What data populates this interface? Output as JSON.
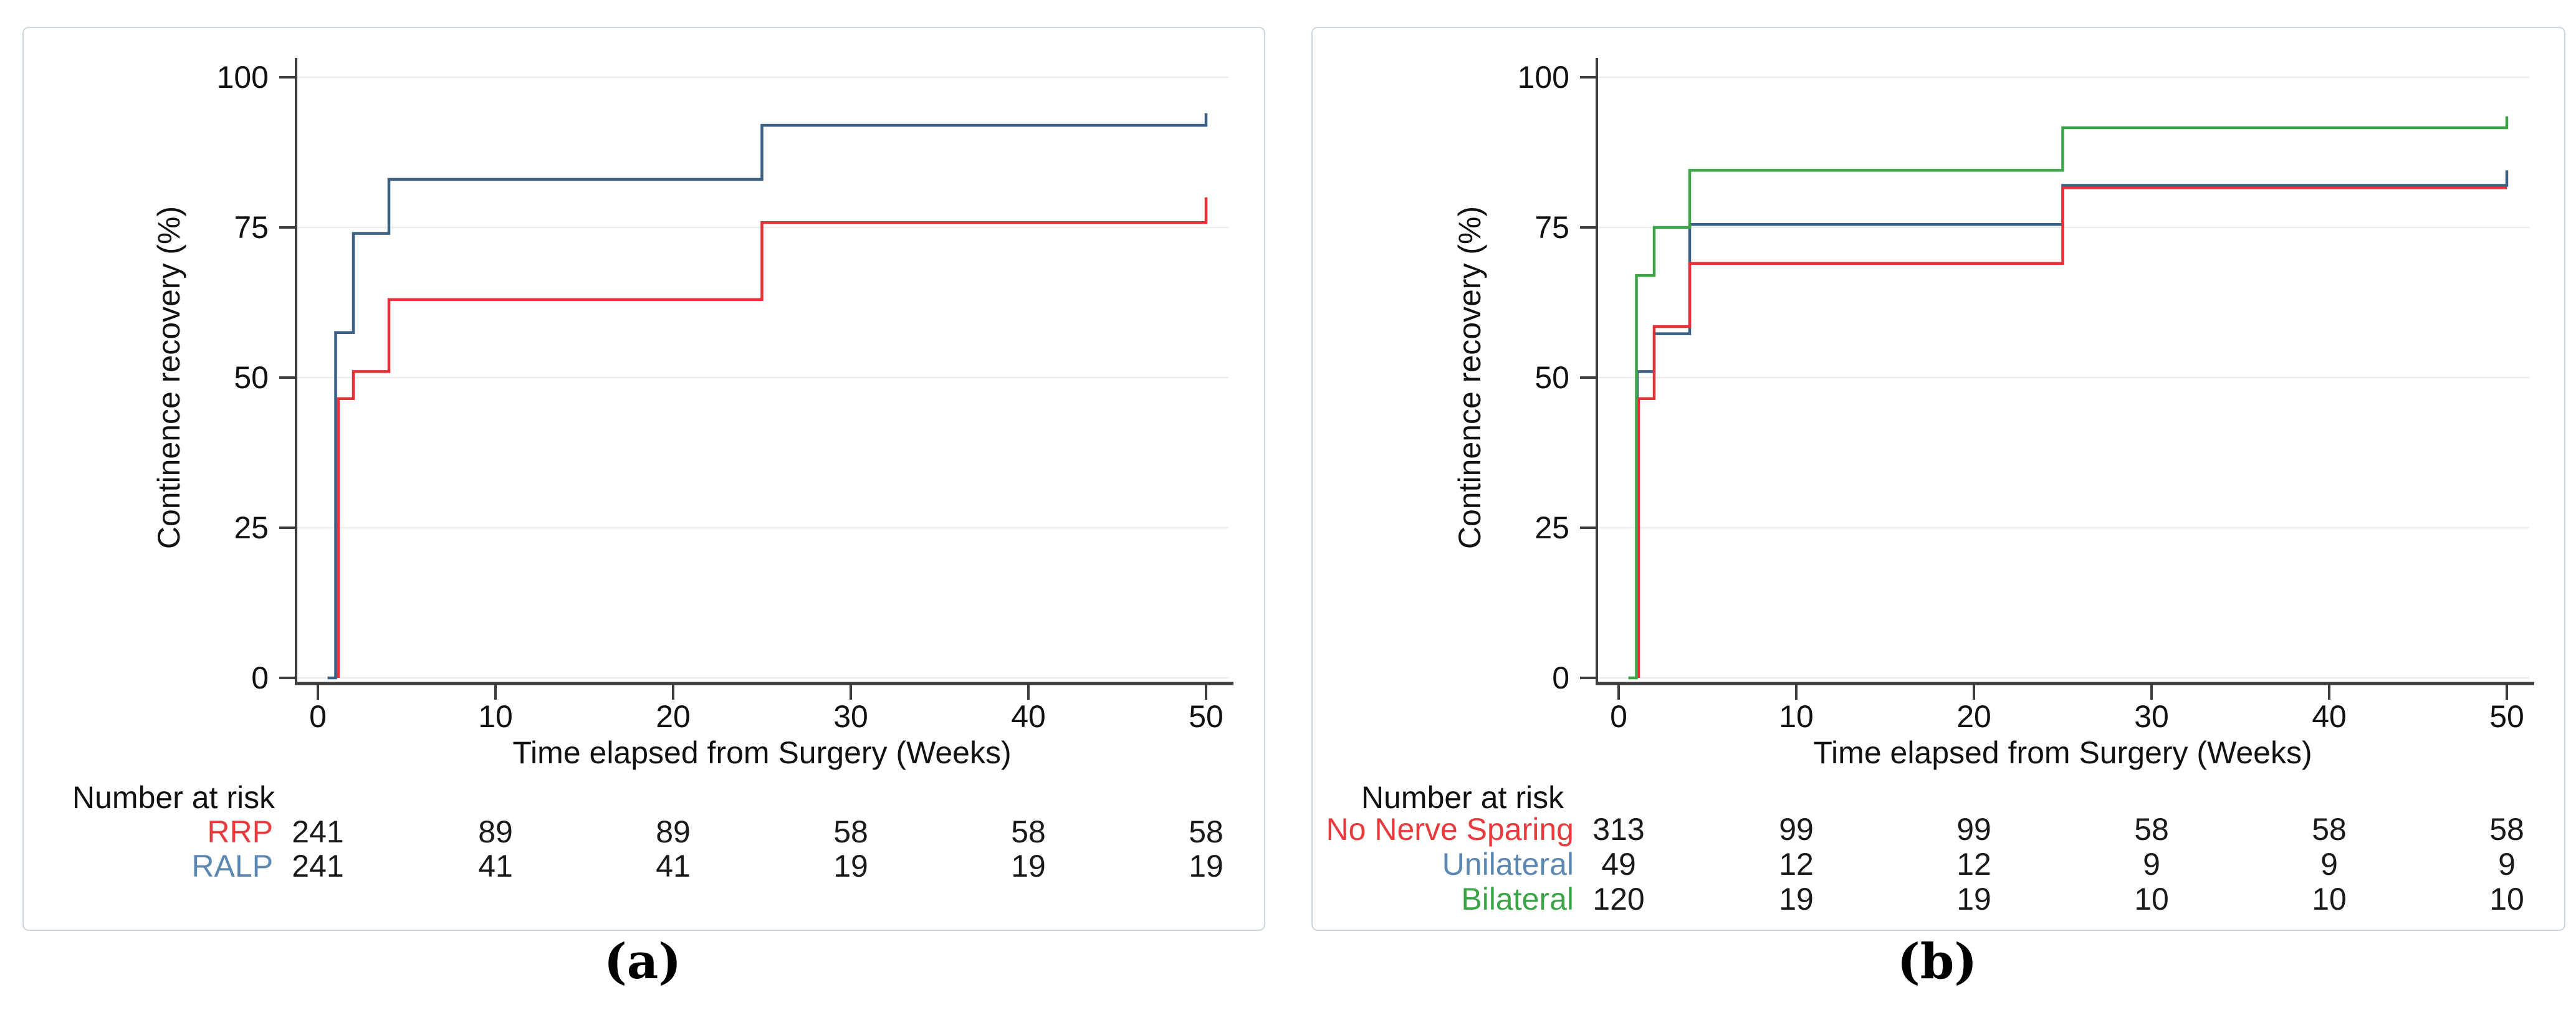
{
  "figure": {
    "background": "#ffffff",
    "frame_color": "#cdd8dd",
    "grid_color": "#e9eded",
    "axis_color": "#3d3d3d",
    "text_color": "#111111"
  },
  "chart_data": [
    {
      "type": "line",
      "subtype": "kaplan-meier-step",
      "panel": "a",
      "caption": "(a)",
      "title": "",
      "xlabel": "Time elapsed from Surgery (Weeks)",
      "ylabel": "Continence recovery (%)",
      "x_ticks": [
        0,
        10,
        20,
        30,
        40,
        50
      ],
      "y_ticks": [
        0,
        25,
        50,
        75,
        100
      ],
      "xlim": [
        0,
        50
      ],
      "ylim": [
        0,
        100
      ],
      "grid": "horizontal",
      "legend_position": "none",
      "series": [
        {
          "name": "RALP",
          "color": "#3a6184",
          "label_color": "#5b87b3",
          "points": [
            [
              0.55,
              0
            ],
            [
              1,
              0
            ],
            [
              1,
              57.5
            ],
            [
              2,
              57.5
            ],
            [
              2,
              74
            ],
            [
              4,
              74
            ],
            [
              4,
              83
            ],
            [
              25,
              83
            ],
            [
              25,
              92
            ],
            [
              50,
              92
            ],
            [
              50,
              94
            ]
          ]
        },
        {
          "name": "RRP",
          "color": "#e53238",
          "label_color": "#e8393d",
          "points": [
            [
              1.15,
              0
            ],
            [
              1.15,
              46.5
            ],
            [
              2,
              46.5
            ],
            [
              2,
              51
            ],
            [
              4,
              51
            ],
            [
              4,
              63
            ],
            [
              25,
              63
            ],
            [
              25,
              75.8
            ],
            [
              50,
              75.8
            ],
            [
              50,
              80
            ]
          ]
        }
      ],
      "risk_table": {
        "title": "Number at risk",
        "at_weeks": [
          0,
          10,
          20,
          30,
          40,
          50
        ],
        "rows": [
          {
            "label": "RRP",
            "color": "#e8393d",
            "values": [
              "241",
              "89",
              "89",
              "58",
              "58",
              "58"
            ]
          },
          {
            "label": "RALP",
            "color": "#5b87b3",
            "values": [
              "241",
              "41",
              "41",
              "19",
              "19",
              "19"
            ]
          }
        ]
      }
    },
    {
      "type": "line",
      "subtype": "kaplan-meier-step",
      "panel": "b",
      "caption": "(b)",
      "title": "",
      "xlabel": "Time elapsed from Surgery (Weeks)",
      "ylabel": "Continence recovery (%)",
      "x_ticks": [
        0,
        10,
        20,
        30,
        40,
        50
      ],
      "y_ticks": [
        0,
        25,
        50,
        75,
        100
      ],
      "xlim": [
        0,
        50
      ],
      "ylim": [
        0,
        100
      ],
      "grid": "horizontal",
      "legend_position": "none",
      "series": [
        {
          "name": "Unilateral",
          "color": "#3a6184",
          "label_color": "#5b87b3",
          "points": [
            [
              1.05,
              0
            ],
            [
              1.05,
              51
            ],
            [
              2,
              51
            ],
            [
              2,
              57.3
            ],
            [
              4,
              57.3
            ],
            [
              4,
              75.5
            ],
            [
              25,
              75.5
            ],
            [
              25,
              82
            ],
            [
              50,
              82
            ],
            [
              50,
              84.5
            ]
          ]
        },
        {
          "name": "No Nerve Sparing",
          "color": "#e53238",
          "label_color": "#e8393d",
          "points": [
            [
              1.12,
              0
            ],
            [
              1.12,
              46.5
            ],
            [
              2,
              46.5
            ],
            [
              2,
              58.5
            ],
            [
              4,
              58.5
            ],
            [
              4,
              69
            ],
            [
              25,
              69
            ],
            [
              25,
              81.6
            ],
            [
              50,
              81.6
            ]
          ]
        },
        {
          "name": "Bilateral",
          "color": "#3aa447",
          "label_color": "#3aa447",
          "points": [
            [
              0.55,
              0
            ],
            [
              1,
              0
            ],
            [
              1,
              67
            ],
            [
              2,
              67
            ],
            [
              2,
              75
            ],
            [
              4,
              75
            ],
            [
              4,
              84.5
            ],
            [
              25,
              84.5
            ],
            [
              25,
              91.6
            ],
            [
              50,
              91.6
            ],
            [
              50,
              93.5
            ]
          ]
        }
      ],
      "risk_table": {
        "title": "Number at risk",
        "at_weeks": [
          0,
          10,
          20,
          30,
          40,
          50
        ],
        "rows": [
          {
            "label": "No Nerve Sparing",
            "color": "#e8393d",
            "values": [
              "313",
              "99",
              "99",
              "58",
              "58",
              "58"
            ]
          },
          {
            "label": "Unilateral",
            "color": "#5b87b3",
            "values": [
              "49",
              "12",
              "12",
              "9",
              "9",
              "9"
            ]
          },
          {
            "label": "Bilateral",
            "color": "#3aa447",
            "values": [
              "120",
              "19",
              "19",
              "10",
              "10",
              "10"
            ]
          }
        ]
      }
    }
  ]
}
